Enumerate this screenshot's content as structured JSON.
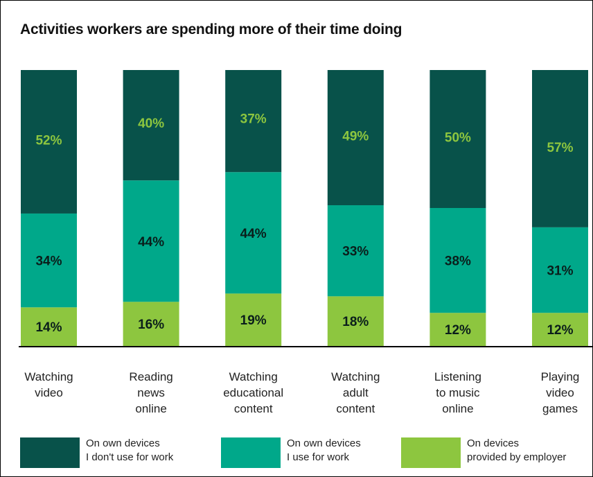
{
  "page_title": "Activities workers are spending more of their time doing",
  "colors": {
    "dark_green": "#08524a",
    "teal": "#00a88a",
    "lime": "#8dc63f",
    "value_on_dark": "#8dc63f",
    "value_on_light": "#0a1e1b",
    "axis_line": "#000000"
  },
  "chart_data": {
    "type": "bar",
    "stacked": true,
    "title": "Activities workers are spending more of their time doing",
    "categories": [
      "Watching\nvideo",
      "Reading\nnews\nonline",
      "Watching\neducational\ncontent",
      "Watching\nadult\ncontent",
      "Listening\nto music\nonline",
      "Playing\nvideo\ngames"
    ],
    "series": [
      {
        "name": "On devices\nprovided by employer",
        "color_key": "lime",
        "values": [
          14,
          16,
          19,
          18,
          12,
          12
        ],
        "labels": [
          "14%",
          "16%",
          "19%",
          "18%",
          "12%",
          "12%"
        ]
      },
      {
        "name": "On own devices\nI use for work",
        "color_key": "teal",
        "values": [
          34,
          44,
          44,
          33,
          38,
          31
        ],
        "labels": [
          "34%",
          "44%",
          "44%",
          "33%",
          "38%",
          "31%"
        ]
      },
      {
        "name": "On own devices\nI don't use for work",
        "color_key": "dark_green",
        "values": [
          52,
          40,
          37,
          49,
          50,
          57
        ],
        "labels": [
          "52%",
          "40%",
          "37%",
          "49%",
          "50%",
          "57%"
        ]
      }
    ],
    "ylim": [
      0,
      100
    ],
    "xlabel": "",
    "ylabel": "",
    "grid": false,
    "legend_position": "bottom"
  },
  "legend": [
    {
      "label": "On own devices\nI don't use for work",
      "color_key": "dark_green"
    },
    {
      "label": "On own devices\nI use for work",
      "color_key": "teal"
    },
    {
      "label": "On devices\nprovided by employer",
      "color_key": "lime"
    }
  ]
}
